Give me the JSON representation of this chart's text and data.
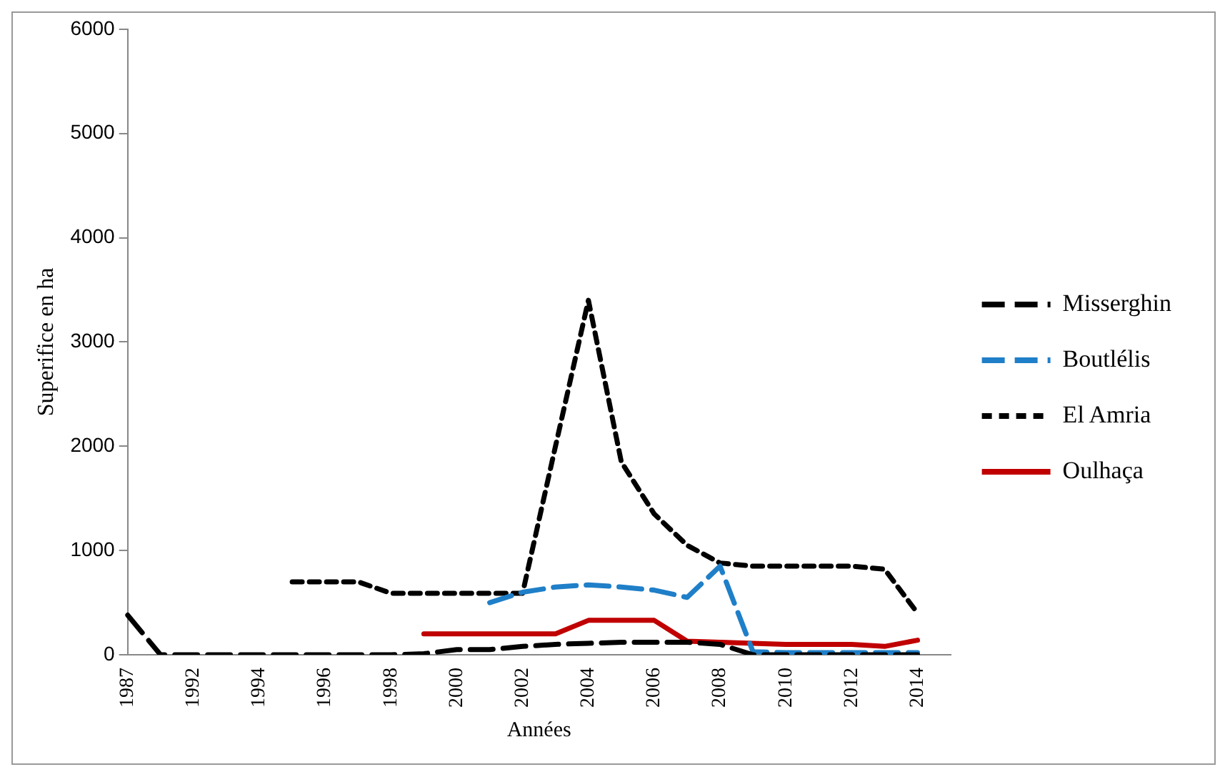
{
  "chart_data": {
    "type": "line",
    "xlabel": "Années",
    "ylabel": "Superifice en ha",
    "categories": [
      "1987",
      null,
      "1992",
      null,
      "1994",
      null,
      "1996",
      null,
      "1998",
      null,
      "2000",
      null,
      "2002",
      null,
      "2004",
      null,
      "2006",
      null,
      "2008",
      null,
      "2010",
      null,
      "2012",
      null,
      "2014",
      null
    ],
    "series": [
      {
        "name": "Misserghin",
        "color": "#000000",
        "line_style": "dashed",
        "values": [
          380,
          0,
          0,
          0,
          0,
          0,
          0,
          0,
          0,
          10,
          50,
          50,
          80,
          100,
          110,
          120,
          120,
          120,
          100,
          0,
          0,
          0,
          0,
          0,
          0,
          null
        ]
      },
      {
        "name": "Boutlélis",
        "color": "#1f7fc8",
        "line_style": "dashed",
        "values": [
          null,
          null,
          null,
          null,
          null,
          null,
          null,
          null,
          null,
          null,
          null,
          500,
          600,
          650,
          670,
          650,
          620,
          550,
          850,
          30,
          20,
          20,
          20,
          20,
          20,
          null
        ]
      },
      {
        "name": "El Amria",
        "color": "#000000",
        "line_style": "dotted",
        "values": [
          null,
          null,
          null,
          null,
          null,
          700,
          700,
          700,
          590,
          590,
          590,
          590,
          590,
          2000,
          3400,
          1850,
          1350,
          1050,
          880,
          850,
          850,
          850,
          850,
          820,
          400,
          null
        ]
      },
      {
        "name": "Oulhaça",
        "color": "#c00000",
        "line_style": "solid",
        "values": [
          null,
          null,
          null,
          null,
          null,
          null,
          null,
          null,
          null,
          200,
          200,
          200,
          200,
          200,
          330,
          330,
          330,
          130,
          120,
          110,
          100,
          100,
          100,
          80,
          140,
          null
        ]
      }
    ],
    "ylim": [
      0,
      6000
    ],
    "yticks": [
      0,
      1000,
      2000,
      3000,
      4000,
      5000,
      6000
    ],
    "grid": false,
    "legend": "right",
    "marker": "none"
  }
}
